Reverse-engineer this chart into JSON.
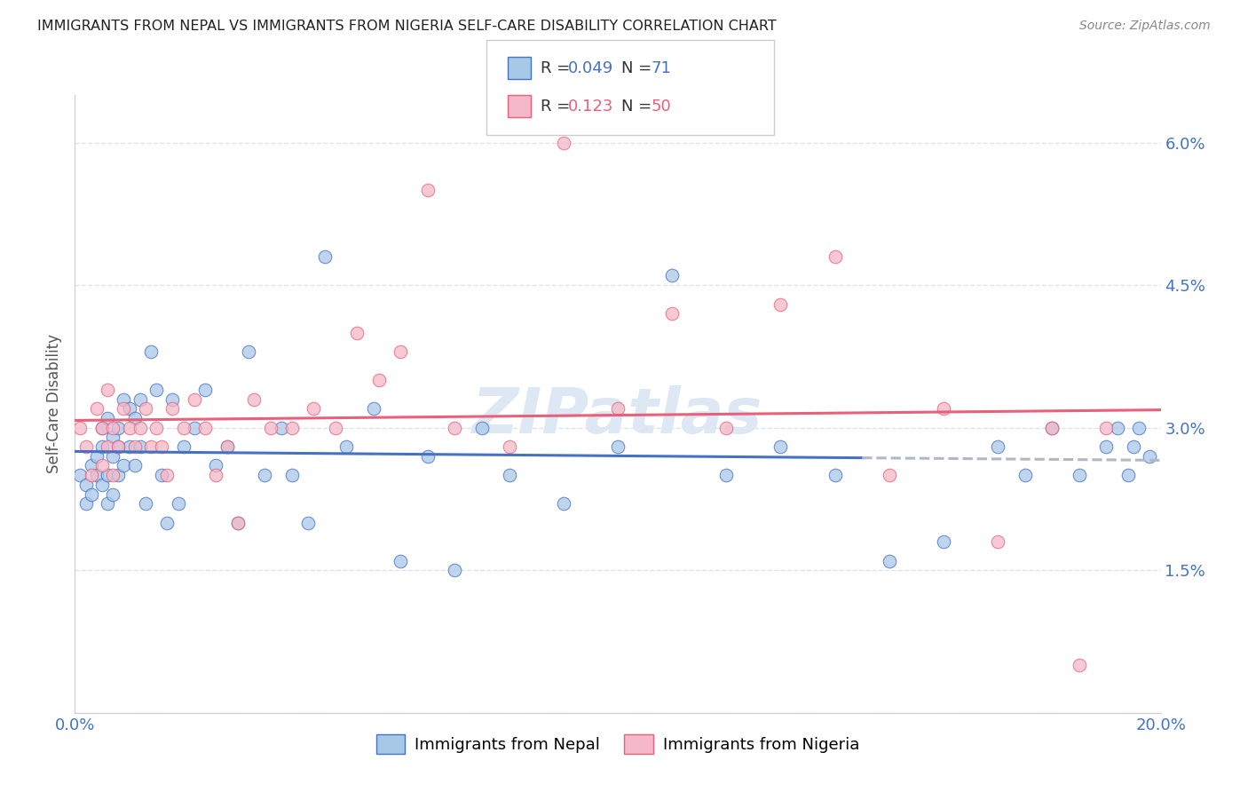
{
  "title": "IMMIGRANTS FROM NEPAL VS IMMIGRANTS FROM NIGERIA SELF-CARE DISABILITY CORRELATION CHART",
  "source": "Source: ZipAtlas.com",
  "ylabel": "Self-Care Disability",
  "xlim": [
    0.0,
    0.2
  ],
  "ylim": [
    0.0,
    0.065
  ],
  "yticks": [
    0.0,
    0.015,
    0.03,
    0.045,
    0.06
  ],
  "ytick_labels": [
    "",
    "1.5%",
    "3.0%",
    "4.5%",
    "6.0%"
  ],
  "xticks": [
    0.0,
    0.05,
    0.1,
    0.15,
    0.2
  ],
  "xtick_labels": [
    "0.0%",
    "",
    "",
    "",
    "20.0%"
  ],
  "nepal_R": 0.049,
  "nepal_N": 71,
  "nigeria_R": 0.123,
  "nigeria_N": 50,
  "nepal_color": "#a8c8e8",
  "nigeria_color": "#f4b8c8",
  "nepal_line_color": "#4472c4",
  "nigeria_line_color": "#e8607a",
  "nepal_dashed_color": "#b0b8c8",
  "background_color": "#ffffff",
  "grid_color": "#dde4f0",
  "title_color": "#222222",
  "axis_color": "#4472c4",
  "watermark_color": "#dde8f4",
  "legend_text_color": "#333333",
  "nepal_x": [
    0.001,
    0.002,
    0.002,
    0.003,
    0.003,
    0.004,
    0.004,
    0.005,
    0.005,
    0.005,
    0.006,
    0.006,
    0.006,
    0.007,
    0.007,
    0.007,
    0.008,
    0.008,
    0.008,
    0.009,
    0.009,
    0.01,
    0.01,
    0.011,
    0.011,
    0.012,
    0.012,
    0.013,
    0.014,
    0.015,
    0.016,
    0.017,
    0.018,
    0.019,
    0.02,
    0.022,
    0.024,
    0.026,
    0.028,
    0.03,
    0.032,
    0.035,
    0.038,
    0.04,
    0.043,
    0.046,
    0.05,
    0.055,
    0.06,
    0.065,
    0.07,
    0.075,
    0.08,
    0.09,
    0.1,
    0.11,
    0.12,
    0.13,
    0.14,
    0.15,
    0.16,
    0.17,
    0.175,
    0.18,
    0.185,
    0.19,
    0.192,
    0.194,
    0.195,
    0.196,
    0.198
  ],
  "nepal_y": [
    0.025,
    0.024,
    0.022,
    0.026,
    0.023,
    0.027,
    0.025,
    0.03,
    0.028,
    0.024,
    0.025,
    0.031,
    0.022,
    0.027,
    0.023,
    0.029,
    0.03,
    0.028,
    0.025,
    0.033,
    0.026,
    0.032,
    0.028,
    0.031,
    0.026,
    0.033,
    0.028,
    0.022,
    0.038,
    0.034,
    0.025,
    0.02,
    0.033,
    0.022,
    0.028,
    0.03,
    0.034,
    0.026,
    0.028,
    0.02,
    0.038,
    0.025,
    0.03,
    0.025,
    0.02,
    0.048,
    0.028,
    0.032,
    0.016,
    0.027,
    0.015,
    0.03,
    0.025,
    0.022,
    0.028,
    0.046,
    0.025,
    0.028,
    0.025,
    0.016,
    0.018,
    0.028,
    0.025,
    0.03,
    0.025,
    0.028,
    0.03,
    0.025,
    0.028,
    0.03,
    0.027
  ],
  "nigeria_x": [
    0.001,
    0.002,
    0.003,
    0.004,
    0.005,
    0.005,
    0.006,
    0.006,
    0.007,
    0.007,
    0.008,
    0.009,
    0.01,
    0.011,
    0.012,
    0.013,
    0.014,
    0.015,
    0.016,
    0.017,
    0.018,
    0.02,
    0.022,
    0.024,
    0.026,
    0.028,
    0.03,
    0.033,
    0.036,
    0.04,
    0.044,
    0.048,
    0.052,
    0.056,
    0.06,
    0.065,
    0.07,
    0.08,
    0.09,
    0.1,
    0.11,
    0.12,
    0.13,
    0.14,
    0.15,
    0.16,
    0.17,
    0.18,
    0.185,
    0.19
  ],
  "nigeria_y": [
    0.03,
    0.028,
    0.025,
    0.032,
    0.026,
    0.03,
    0.034,
    0.028,
    0.03,
    0.025,
    0.028,
    0.032,
    0.03,
    0.028,
    0.03,
    0.032,
    0.028,
    0.03,
    0.028,
    0.025,
    0.032,
    0.03,
    0.033,
    0.03,
    0.025,
    0.028,
    0.02,
    0.033,
    0.03,
    0.03,
    0.032,
    0.03,
    0.04,
    0.035,
    0.038,
    0.055,
    0.03,
    0.028,
    0.06,
    0.032,
    0.042,
    0.03,
    0.043,
    0.048,
    0.025,
    0.032,
    0.018,
    0.03,
    0.005,
    0.03
  ]
}
